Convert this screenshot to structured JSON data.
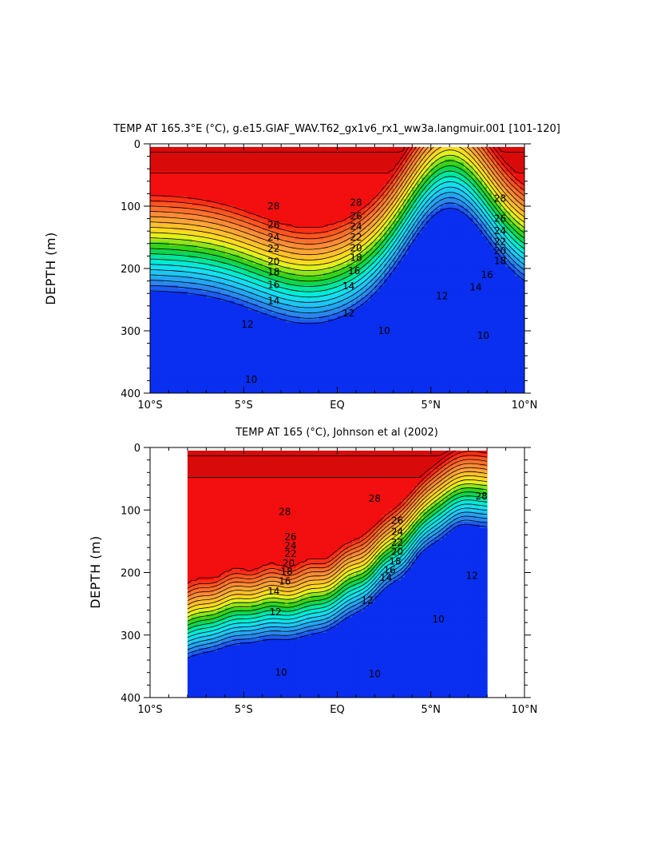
{
  "chart_data": [
    {
      "type": "contour",
      "title": "TEMP AT 165.3°E (°C), g.e15.GIAF_WAV.T62_gx1v6_rx1_ww3a.langmuir.001 [101-120]",
      "ylabel": "DEPTH (m)",
      "xlabel": "",
      "x_ticks": [
        "10°S",
        "5°S",
        "EQ",
        "5°N",
        "10°N"
      ],
      "x_values": [
        -10,
        -5,
        0,
        5,
        10
      ],
      "y_ticks": [
        "0",
        "100",
        "200",
        "300",
        "400"
      ],
      "y_values": [
        0,
        100,
        200,
        300,
        400
      ],
      "xlim": [
        -10,
        10
      ],
      "ylim": [
        400,
        0
      ],
      "data_xlim": [
        -10,
        10
      ],
      "contour_interval": 1,
      "temperature_range": [
        8,
        30
      ],
      "contour_labels": [
        {
          "text": "28",
          "lat": -3.4,
          "depth": 100
        },
        {
          "text": "26",
          "lat": -3.4,
          "depth": 130
        },
        {
          "text": "24",
          "lat": -3.4,
          "depth": 150
        },
        {
          "text": "22",
          "lat": -3.4,
          "depth": 168
        },
        {
          "text": "20",
          "lat": -3.4,
          "depth": 189
        },
        {
          "text": "18",
          "lat": -3.4,
          "depth": 206
        },
        {
          "text": "16",
          "lat": -3.4,
          "depth": 226
        },
        {
          "text": "14",
          "lat": -3.4,
          "depth": 252
        },
        {
          "text": "12",
          "lat": -4.8,
          "depth": 290
        },
        {
          "text": "10",
          "lat": -4.6,
          "depth": 378
        },
        {
          "text": "28",
          "lat": 1.0,
          "depth": 94
        },
        {
          "text": "26",
          "lat": 1.0,
          "depth": 116
        },
        {
          "text": "24",
          "lat": 1.0,
          "depth": 133
        },
        {
          "text": "22",
          "lat": 1.0,
          "depth": 150
        },
        {
          "text": "20",
          "lat": 1.0,
          "depth": 167
        },
        {
          "text": "18",
          "lat": 1.0,
          "depth": 183
        },
        {
          "text": "16",
          "lat": 0.9,
          "depth": 204
        },
        {
          "text": "14",
          "lat": 0.6,
          "depth": 228
        },
        {
          "text": "12",
          "lat": 0.6,
          "depth": 272
        },
        {
          "text": "10",
          "lat": 2.5,
          "depth": 300
        },
        {
          "text": "28",
          "lat": 8.7,
          "depth": 88
        },
        {
          "text": "26",
          "lat": 8.7,
          "depth": 120
        },
        {
          "text": "24",
          "lat": 8.7,
          "depth": 140
        },
        {
          "text": "22",
          "lat": 8.7,
          "depth": 157
        },
        {
          "text": "20",
          "lat": 8.7,
          "depth": 172
        },
        {
          "text": "18",
          "lat": 8.7,
          "depth": 188
        },
        {
          "text": "16",
          "lat": 8.0,
          "depth": 210
        },
        {
          "text": "14",
          "lat": 7.4,
          "depth": 230
        },
        {
          "text": "12",
          "lat": 5.6,
          "depth": 244
        },
        {
          "text": "10",
          "lat": 7.8,
          "depth": 308
        }
      ]
    },
    {
      "type": "contour",
      "title": "TEMP AT 165 (°C), Johnson et al (2002)",
      "ylabel": "DEPTH (m)",
      "xlabel": "",
      "x_ticks": [
        "10°S",
        "5°S",
        "EQ",
        "5°N",
        "10°N"
      ],
      "x_values": [
        -10,
        -5,
        0,
        5,
        10
      ],
      "y_ticks": [
        "0",
        "100",
        "200",
        "300",
        "400"
      ],
      "y_values": [
        0,
        100,
        200,
        300,
        400
      ],
      "xlim": [
        -10,
        10
      ],
      "ylim": [
        400,
        0
      ],
      "data_xlim": [
        -8,
        8
      ],
      "contour_interval": 1,
      "temperature_range": [
        8,
        30
      ],
      "contour_labels": [
        {
          "text": "28",
          "lat": -2.8,
          "depth": 103
        },
        {
          "text": "26",
          "lat": -2.5,
          "depth": 143
        },
        {
          "text": "24",
          "lat": -2.5,
          "depth": 157
        },
        {
          "text": "22",
          "lat": -2.5,
          "depth": 170
        },
        {
          "text": "20",
          "lat": -2.6,
          "depth": 185
        },
        {
          "text": "18",
          "lat": -2.7,
          "depth": 199
        },
        {
          "text": "16",
          "lat": -2.8,
          "depth": 214
        },
        {
          "text": "14",
          "lat": -3.4,
          "depth": 230
        },
        {
          "text": "12",
          "lat": -3.3,
          "depth": 263
        },
        {
          "text": "10",
          "lat": -3.0,
          "depth": 360
        },
        {
          "text": "28",
          "lat": 2.0,
          "depth": 82
        },
        {
          "text": "26",
          "lat": 3.2,
          "depth": 117
        },
        {
          "text": "24",
          "lat": 3.2,
          "depth": 135
        },
        {
          "text": "22",
          "lat": 3.2,
          "depth": 152
        },
        {
          "text": "20",
          "lat": 3.2,
          "depth": 167
        },
        {
          "text": "18",
          "lat": 3.1,
          "depth": 182
        },
        {
          "text": "16",
          "lat": 2.8,
          "depth": 196
        },
        {
          "text": "14",
          "lat": 2.6,
          "depth": 208
        },
        {
          "text": "12",
          "lat": 1.6,
          "depth": 245
        },
        {
          "text": "10",
          "lat": 2.0,
          "depth": 362
        },
        {
          "text": "28",
          "lat": 7.7,
          "depth": 78
        },
        {
          "text": "12",
          "lat": 7.2,
          "depth": 205
        },
        {
          "text": "10",
          "lat": 5.4,
          "depth": 275
        }
      ]
    }
  ]
}
